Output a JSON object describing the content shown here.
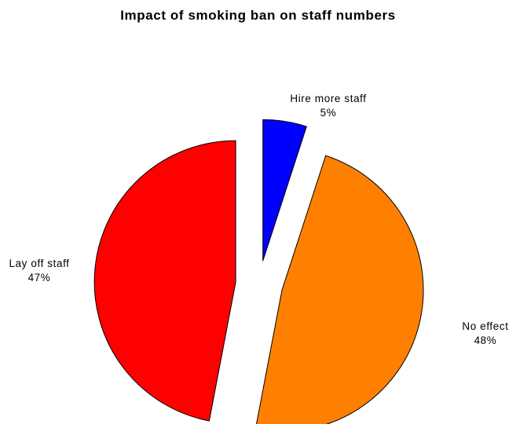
{
  "chart_data": {
    "type": "pie",
    "title": "Impact of smoking ban on staff numbers",
    "slices": [
      {
        "label": "Hire more staff",
        "value": 5,
        "value_label": "5%",
        "color": "#0000ff"
      },
      {
        "label": "No effect",
        "value": 48,
        "value_label": "48%",
        "color": "#ff8000"
      },
      {
        "label": "Lay off staff",
        "value": 47,
        "value_label": "47%",
        "color": "#ff0000"
      }
    ],
    "start": "12 o'clock",
    "direction": "clockwise",
    "exploded": true,
    "legend": "none"
  }
}
